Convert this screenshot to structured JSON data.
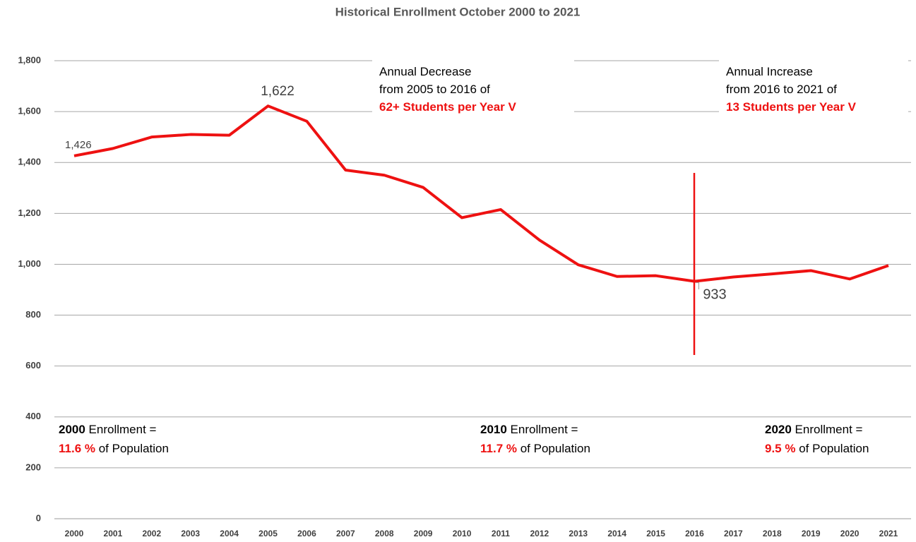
{
  "chart_data": {
    "type": "line",
    "title": "Historical Enrollment October 2000 to 2021",
    "categories": [
      "2000",
      "2001",
      "2002",
      "2003",
      "2004",
      "2005",
      "2006",
      "2007",
      "2008",
      "2009",
      "2010",
      "2011",
      "2012",
      "2013",
      "2014",
      "2015",
      "2016",
      "2017",
      "2018",
      "2019",
      "2020",
      "2021"
    ],
    "series": [
      {
        "name": "Enrollment",
        "color": "#ee1111",
        "values": [
          1426,
          1455,
          1500,
          1510,
          1507,
          1622,
          1562,
          1370,
          1350,
          1302,
          1183,
          1215,
          1095,
          998,
          952,
          955,
          933,
          950,
          962,
          975,
          942,
          995
        ],
        "value_labels": [
          "1,426",
          null,
          null,
          null,
          null,
          "1,622",
          null,
          null,
          null,
          null,
          null,
          null,
          null,
          null,
          null,
          null,
          "933",
          null,
          null,
          null,
          null,
          null
        ]
      }
    ],
    "ylim": [
      0,
      1800
    ],
    "yticks": [
      0,
      200,
      400,
      600,
      800,
      {
        "value": 1000,
        "label": "1,000"
      },
      {
        "value": 1200,
        "label": "1,200"
      },
      {
        "value": 1400,
        "label": "1,400"
      },
      {
        "value": 1600,
        "label": "1,600"
      },
      {
        "value": 1800,
        "label": "1,800"
      }
    ],
    "grid": true,
    "annotations": [
      {
        "lines": [
          [
            {
              "text": "Annual Decrease"
            }
          ],
          [
            {
              "text": "from 2005 to 2016 of"
            }
          ],
          [
            {
              "text": "62+ Students per Year V",
              "emphasis": "red"
            }
          ]
        ]
      },
      {
        "lines": [
          [
            {
              "text": "Annual Increase"
            }
          ],
          [
            {
              "text": "from 2016 to 2021 of"
            }
          ],
          [
            {
              "text": "13 Students per Year V",
              "emphasis": "red"
            }
          ]
        ]
      },
      {
        "lines": [
          [
            {
              "text": "2000",
              "emphasis": "bold"
            },
            {
              "text": " Enrollment ="
            }
          ],
          [
            {
              "text": "11.6 %",
              "emphasis": "red"
            },
            {
              "text": " of Population"
            }
          ]
        ]
      },
      {
        "lines": [
          [
            {
              "text": "2010",
              "emphasis": "bold"
            },
            {
              "text": " Enrollment ="
            }
          ],
          [
            {
              "text": "11.7 %",
              "emphasis": "red"
            },
            {
              "text": " of Population"
            }
          ]
        ]
      },
      {
        "lines": [
          [
            {
              "text": "2020",
              "emphasis": "bold"
            },
            {
              "text": " Enrollment ="
            }
          ],
          [
            {
              "text": "9.5 %",
              "emphasis": "red"
            },
            {
              "text": " of Population"
            }
          ]
        ]
      }
    ]
  }
}
